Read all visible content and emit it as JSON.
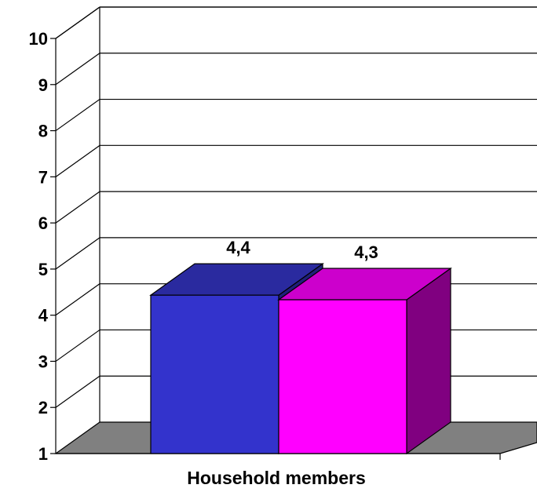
{
  "chart_data": {
    "type": "bar",
    "style": "3d",
    "title": "",
    "xlabel": "Household members",
    "ylabel": "",
    "ylim": [
      1,
      10
    ],
    "yticks": [
      1,
      2,
      3,
      4,
      5,
      6,
      7,
      8,
      9,
      10
    ],
    "grid": true,
    "legend": "none",
    "series": [
      {
        "values": [
          4.4
        ],
        "label": "4,4",
        "color": "#3333CC",
        "top_color": "#2A2A9F",
        "side_color": "#1F1F7A"
      },
      {
        "values": [
          4.3
        ],
        "label": "4,3",
        "color": "#FF00FF",
        "top_color": "#CC00CC",
        "side_color": "#800080"
      }
    ],
    "colors": {
      "floor": "#808080",
      "grid": "#000000",
      "background": "#FFFFFF"
    }
  }
}
